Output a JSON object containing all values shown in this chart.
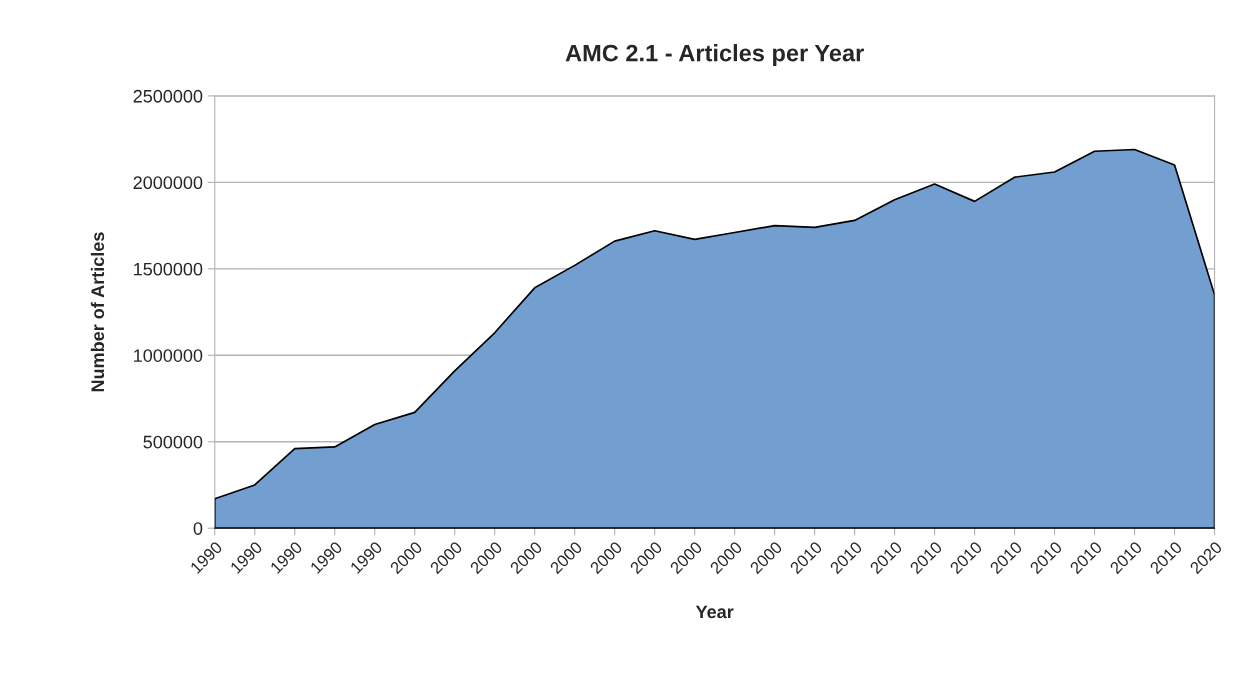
{
  "chart_data": {
    "type": "area",
    "title": "AMC 2.1 - Articles per Year",
    "xlabel": "Year",
    "ylabel": "Number of Articles",
    "categories": [
      "1990",
      "1990",
      "1990",
      "1990",
      "1990",
      "2000",
      "2000",
      "2000",
      "2000",
      "2000",
      "2000",
      "2000",
      "2000",
      "2000",
      "2000",
      "2010",
      "2010",
      "2010",
      "2010",
      "2010",
      "2010",
      "2010",
      "2010",
      "2010",
      "2010",
      "2020"
    ],
    "series": [
      {
        "color": "#729fcf",
        "values": [
          170000,
          250000,
          460000,
          470000,
          600000,
          670000,
          910000,
          1130000,
          1390000,
          1520000,
          1660000,
          1720000,
          1670000,
          1710000,
          1750000,
          1740000,
          1780000,
          1900000,
          1990000,
          1890000,
          2030000,
          2060000,
          2180000,
          2190000,
          2100000,
          1350000
        ]
      }
    ],
    "ylim": [
      0,
      2500000
    ],
    "yticks": [
      0,
      500000,
      1000000,
      1500000,
      2000000,
      2500000
    ],
    "grid": "y"
  }
}
